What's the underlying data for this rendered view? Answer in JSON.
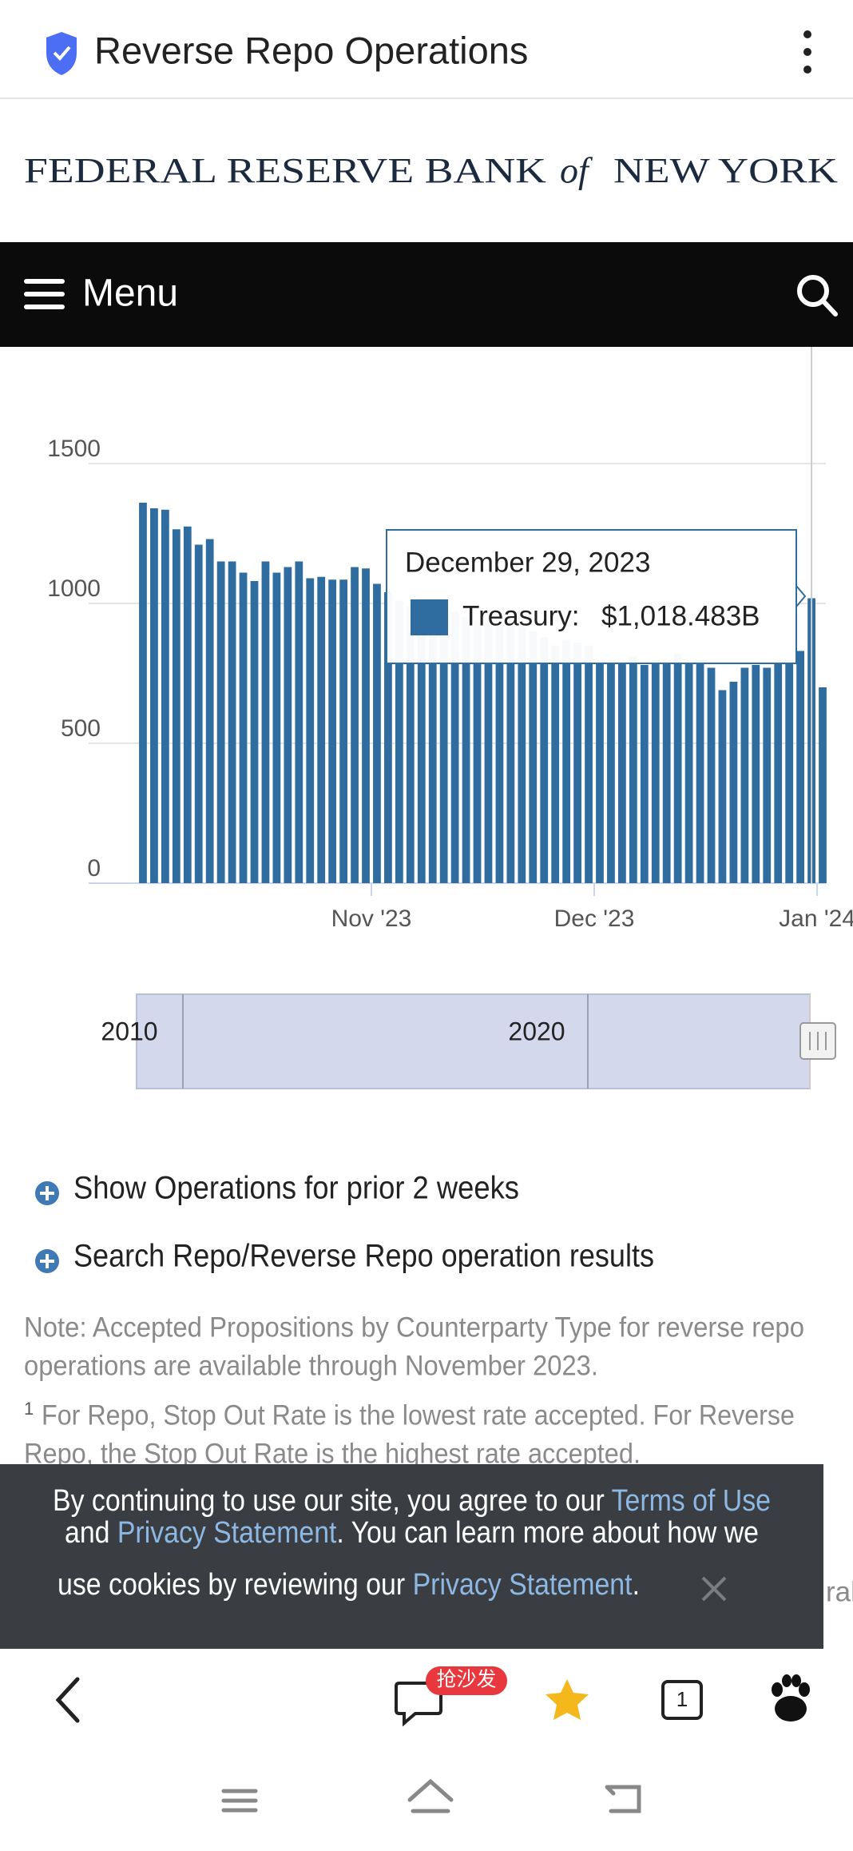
{
  "browser": {
    "title": "Reverse Repo Operations"
  },
  "site": {
    "logo": [
      "FEDERAL RESERVE BANK",
      "of",
      "NEW YORK"
    ],
    "menu": "Menu"
  },
  "chart_data": {
    "type": "bar",
    "categories": [
      null,
      null,
      null,
      null,
      null,
      null,
      null,
      null,
      null,
      null,
      null,
      null,
      null,
      null,
      null,
      null,
      null,
      null,
      null,
      null,
      null,
      null,
      null,
      null,
      null,
      null,
      null,
      null,
      null,
      null,
      null,
      null,
      null,
      null,
      null,
      null,
      null,
      null,
      null,
      null,
      null,
      null,
      null,
      null,
      null,
      null,
      null,
      null,
      null,
      null,
      null,
      null,
      null,
      null,
      null,
      null,
      null,
      null,
      null,
      null,
      "December 29, 2023",
      null
    ],
    "series": [
      {
        "name": "Treasury:",
        "color": "#2f6ca0",
        "values": [
          1360,
          1340,
          1335,
          1265,
          1275,
          1210,
          1230,
          1150,
          1150,
          1110,
          1080,
          1150,
          1110,
          1130,
          1150,
          1090,
          1095,
          1085,
          1085,
          1130,
          1125,
          1070,
          1040,
          1010,
          990,
          1000,
          980,
          960,
          970,
          950,
          940,
          930,
          960,
          940,
          920,
          900,
          880,
          850,
          870,
          860,
          850,
          790,
          800,
          790,
          810,
          780,
          800,
          790,
          820,
          790,
          800,
          770,
          690,
          720,
          770,
          780,
          770,
          790,
          800,
          830,
          1018.483,
          700
        ],
        "value_labels": [
          null,
          null,
          null,
          null,
          null,
          null,
          null,
          null,
          null,
          null,
          null,
          null,
          null,
          null,
          null,
          null,
          null,
          null,
          null,
          null,
          null,
          null,
          null,
          null,
          null,
          null,
          null,
          null,
          null,
          null,
          null,
          null,
          null,
          null,
          null,
          null,
          null,
          null,
          null,
          null,
          null,
          null,
          null,
          null,
          null,
          null,
          null,
          null,
          null,
          null,
          null,
          null,
          null,
          null,
          null,
          null,
          null,
          null,
          null,
          null,
          "$1,018.483B",
          null
        ]
      }
    ],
    "ylim": [
      0,
      1500
    ],
    "yticks": [
      0,
      500,
      1000,
      1500
    ],
    "xlim": [
      -0.5,
      61.5
    ],
    "xticks": [
      {
        "value": 20.5,
        "label": "Nov '23"
      },
      {
        "value": 40.5,
        "label": "Dec '23"
      },
      {
        "value": 60.5,
        "label": "Jan '24"
      }
    ],
    "grid": true
  },
  "navigator": {
    "labels": [
      "2010",
      "2020"
    ]
  },
  "links": [
    "Show Operations for prior 2 weeks",
    "Search Repo/Reverse Repo operation results"
  ],
  "note": [
    "Note: Accepted Propositions by Counterparty Type for reverse repo",
    "operations are available through November 2023."
  ],
  "footnote": {
    "marker": "1",
    "lines": [
      "For Repo, Stop Out Rate is the lowest rate accepted. For Reverse",
      "Repo, the Stop Out Rate is the highest rate accepted."
    ]
  },
  "behind_text": "ral",
  "cookie_banner": {
    "link_color": "#8db8e3",
    "lines": [
      [
        {
          "text": "By continuing to use our site, you agree to our "
        },
        {
          "text": "Terms of Use",
          "link": true
        }
      ],
      [
        {
          "text": "and "
        },
        {
          "text": "Privacy Statement",
          "link": true
        },
        {
          "text": ". You can learn more about how we"
        }
      ],
      [
        {
          "text": "use cookies by reviewing our "
        },
        {
          "text": "Privacy Statement",
          "link": true
        },
        {
          "text": "."
        }
      ]
    ]
  },
  "toolbar": {
    "badge": "抢沙发",
    "tab_count": "1"
  }
}
